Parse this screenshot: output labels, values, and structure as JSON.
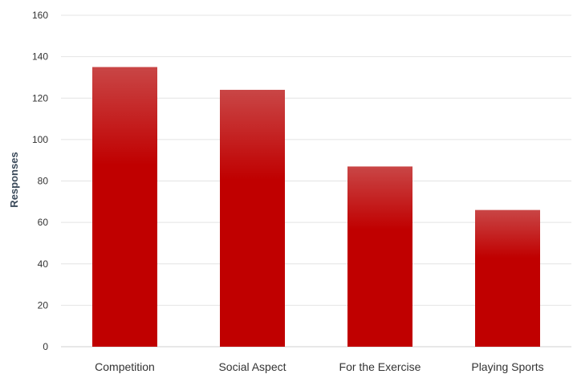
{
  "chart_data": {
    "type": "bar",
    "title": "",
    "xlabel": "",
    "ylabel": "Responses",
    "categories": [
      "Competition",
      "Social Aspect",
      "For the Exercise",
      "Playing Sports"
    ],
    "values": [
      135,
      124,
      87,
      66
    ],
    "ylim": [
      0,
      160
    ],
    "yticks": [
      0,
      20,
      40,
      60,
      80,
      100,
      120,
      140,
      160
    ],
    "grid": true,
    "legend": "none",
    "bar_color_top": "#c94646",
    "bar_color_bottom": "#c00000"
  }
}
